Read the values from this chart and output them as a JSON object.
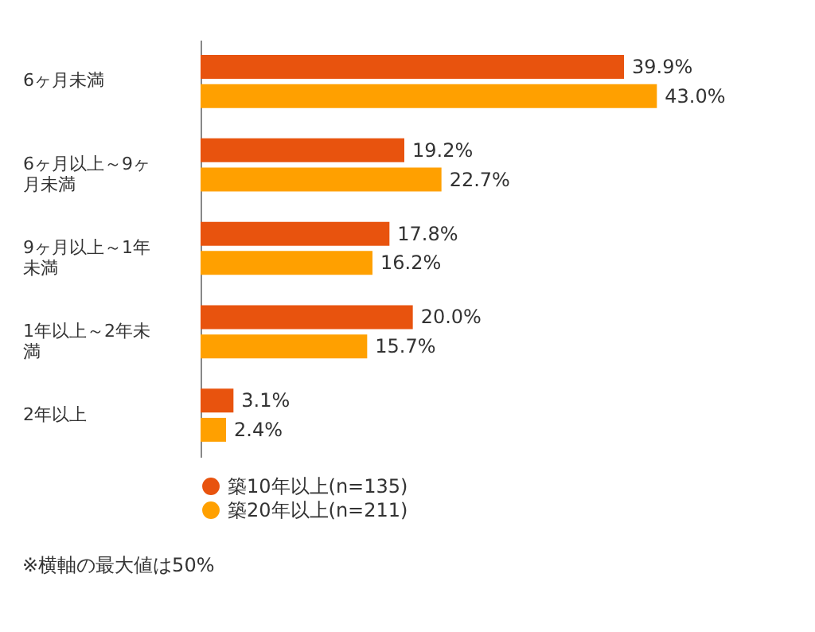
{
  "chart_data": {
    "type": "bar",
    "orientation": "horizontal",
    "categories": [
      "6ヶ月未満",
      "6ヶ月以上～9ヶ月未満",
      "9ヶ月以上～1年未満",
      "1年以上～2年未満",
      "2年以上"
    ],
    "series": [
      {
        "name": "築10年以上(n=135)",
        "color": "#e8530e",
        "values": [
          39.9,
          19.2,
          17.8,
          20.0,
          3.1
        ],
        "value_labels": [
          "39.9%",
          "19.2%",
          "17.8%",
          "20.0%",
          "3.1%"
        ]
      },
      {
        "name": "築20年以上(n=211)",
        "color": "#ffa000",
        "values": [
          43.0,
          22.7,
          16.2,
          15.7,
          2.4
        ],
        "value_labels": [
          "43.0%",
          "22.7%",
          "16.2%",
          "15.7%",
          "2.4%"
        ]
      }
    ],
    "tick_labels": "y",
    "grid": false,
    "legend": "bottom",
    "annotations": [
      "※横軸の最大値は50%"
    ]
  }
}
